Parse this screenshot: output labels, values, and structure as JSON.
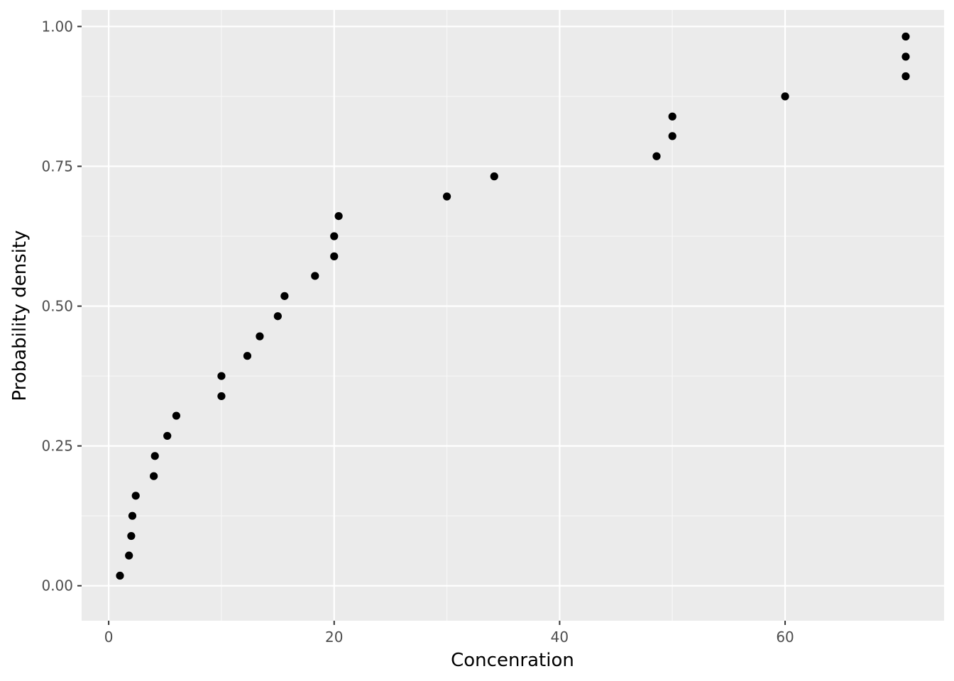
{
  "chart_data": {
    "type": "scatter",
    "xlabel": "Concenration",
    "ylabel": "Probability density",
    "xlim": [
      -2.4,
      74.1
    ],
    "ylim": [
      -0.0625,
      1.0296
    ],
    "x_ticks": [
      0,
      20,
      40,
      60
    ],
    "x_tick_labels": [
      "0",
      "20",
      "40",
      "60"
    ],
    "y_ticks": [
      0.0,
      0.25,
      0.5,
      0.75,
      1.0
    ],
    "y_tick_labels": [
      "0.00",
      "0.25",
      "0.50",
      "0.75",
      "1.00"
    ],
    "grid": true,
    "legend": "none",
    "colors": {
      "panel_background": "#EBEBEB",
      "grid_major": "#FFFFFF",
      "grid_minor": "#F7F7F7",
      "point": "#000000",
      "tick_mark": "#333333"
    },
    "x": [
      1.0,
      1.8,
      2.0,
      2.1,
      2.4,
      4.0,
      4.1,
      5.2,
      6.0,
      10.0,
      10.0,
      12.3,
      13.4,
      15.0,
      15.6,
      18.3,
      20.0,
      20.0,
      20.4,
      30.0,
      34.2,
      48.6,
      50.0,
      50.0,
      60.0,
      70.7,
      70.7,
      70.7
    ],
    "y": [
      0.018,
      0.054,
      0.089,
      0.125,
      0.161,
      0.196,
      0.232,
      0.268,
      0.304,
      0.339,
      0.375,
      0.411,
      0.446,
      0.482,
      0.518,
      0.554,
      0.589,
      0.625,
      0.661,
      0.696,
      0.732,
      0.768,
      0.804,
      0.839,
      0.875,
      0.911,
      0.946,
      0.982
    ]
  }
}
